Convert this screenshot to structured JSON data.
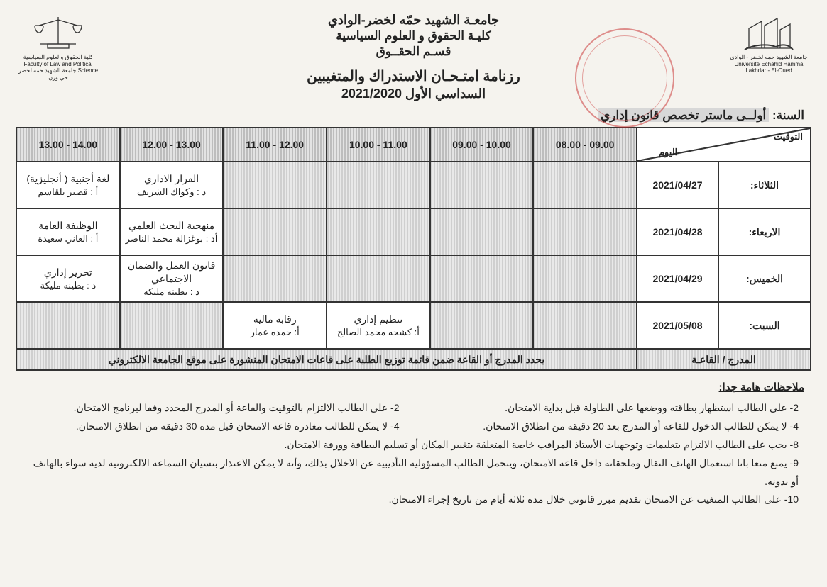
{
  "header": {
    "university": "جامعـة  الشهيد حمّه لخضر-الوادي",
    "faculty": "كليـة الحقوق و العلوم السياسية",
    "department": "قسـم الحقــوق",
    "title": "رزنامة امتـحـان الاستدراك والمتغيبين",
    "semester": "السداسي الأول 2021/2020",
    "logo_right_caption": "جامعة الشهيد حمه لخضر - الوادي\nUniversité Echahid Hamma Lakhdar - El-Oued",
    "logo_left_caption": "كلية الحقوق والعلوم السياسية\nFaculty of Law and Political Science\nجامعة الشهيد حمه لخضر\nحي وزن"
  },
  "year_label": "السنة:",
  "year_value": "أولــى ماستر  تخصص قانون إداري",
  "table": {
    "corner_top": "التوقيت",
    "corner_bottom": "اليوم",
    "time_slots": [
      "09.00 - 08.00",
      "10.00 - 09.00",
      "11.00 - 10.00",
      "12.00 - 11.00",
      "13.00 - 12.00",
      "14.00 - 13.00"
    ],
    "rows": [
      {
        "day": "الثلاثاء:",
        "date": "2021/04/27",
        "cells": [
          null,
          null,
          null,
          null,
          {
            "subject": "القرار الاداري",
            "prof": "د : وكواك الشريف"
          },
          {
            "subject": "لغة أجنبية ( أنجليزية)",
            "prof": "أ : قصير بلقاسم"
          }
        ]
      },
      {
        "day": "الاربعاء:",
        "date": "2021/04/28",
        "cells": [
          null,
          null,
          null,
          null,
          {
            "subject": "منهجية البحث العلمي",
            "prof": "أد : بوغزالة محمد الناصر"
          },
          {
            "subject": "الوظيفة العامة",
            "prof": "أ : العاني سعيدة"
          }
        ]
      },
      {
        "day": "الخميس:",
        "date": "2021/04/29",
        "cells": [
          null,
          null,
          null,
          null,
          {
            "subject": "قانون العمل والضمان الاجتماعي",
            "prof": "د : بطينه مليكه"
          },
          {
            "subject": "تحرير إداري",
            "prof": "د : بطينه مليكة"
          }
        ]
      },
      {
        "day": "السبت:",
        "date": "2021/05/08",
        "cells": [
          null,
          null,
          {
            "subject": "تنظيم إداري",
            "prof": "أ: كشحه محمد الصالح"
          },
          {
            "subject": "رقابه مالية",
            "prof": "أ: حمده عمار"
          },
          null,
          null
        ]
      }
    ],
    "footer_label": "المدرج / القاعـة",
    "footer_text": "يحدد المدرج أو القاعة ضمن قائمة توزيع الطلبة على قاعات الامتحان المنشورة على موقع الجامعة الالكتروني"
  },
  "notes_title": "ملاحظات هامة جدا:",
  "notes": {
    "pairs": [
      [
        "2-   على الطالب استظهار بطاقته ووضعها على الطاولة قبل بداية الامتحان.",
        "2-  على الطالب الالتزام بالتوقيت والقاعة أو المدرج المحدد وفقا لبرنامج الامتحان."
      ],
      [
        "4-  لا يمكن للطالب الدخول للقاعة أو المدرج بعد 20 دقيقة من انطلاق الامتحان.",
        "4- لا يمكن للطالب مغادرة قاعة الامتحان قبل مدة 30 دقيقة من انطلاق الامتحان."
      ]
    ],
    "full": [
      "8- يجب على الطالب الالتزام بتعليمات وتوجهيات الأستاذ المراقب خاصة المتعلقة بتغيير المكان أو تسليم البطاقة وورقة الامتحان.",
      "9-  يمنع منعا باتا استعمال الهاتف النقال وملحقاته داخل قاعة الامتحان، ويتحمل الطالب المسؤولية التأديبية عن الاخلال بذلك، وأنه لا يمكن الاعتذار بنسيان السماعة الالكترونية لديه سواء بالهاتف أو بدونه.",
      "10- على الطالب المتغيب عن الامتحان تقديم مبرر قانوني خلال مدة ثلاثة أيام من تاريخ إجراء الامتحان."
    ]
  },
  "colors": {
    "page_bg": "#f5f3ee",
    "border": "#333333",
    "hatch_dark": "#bdbdbd",
    "hatch_light": "#e3e3e3",
    "stamp": "rgba(200,40,40,0.5)"
  }
}
